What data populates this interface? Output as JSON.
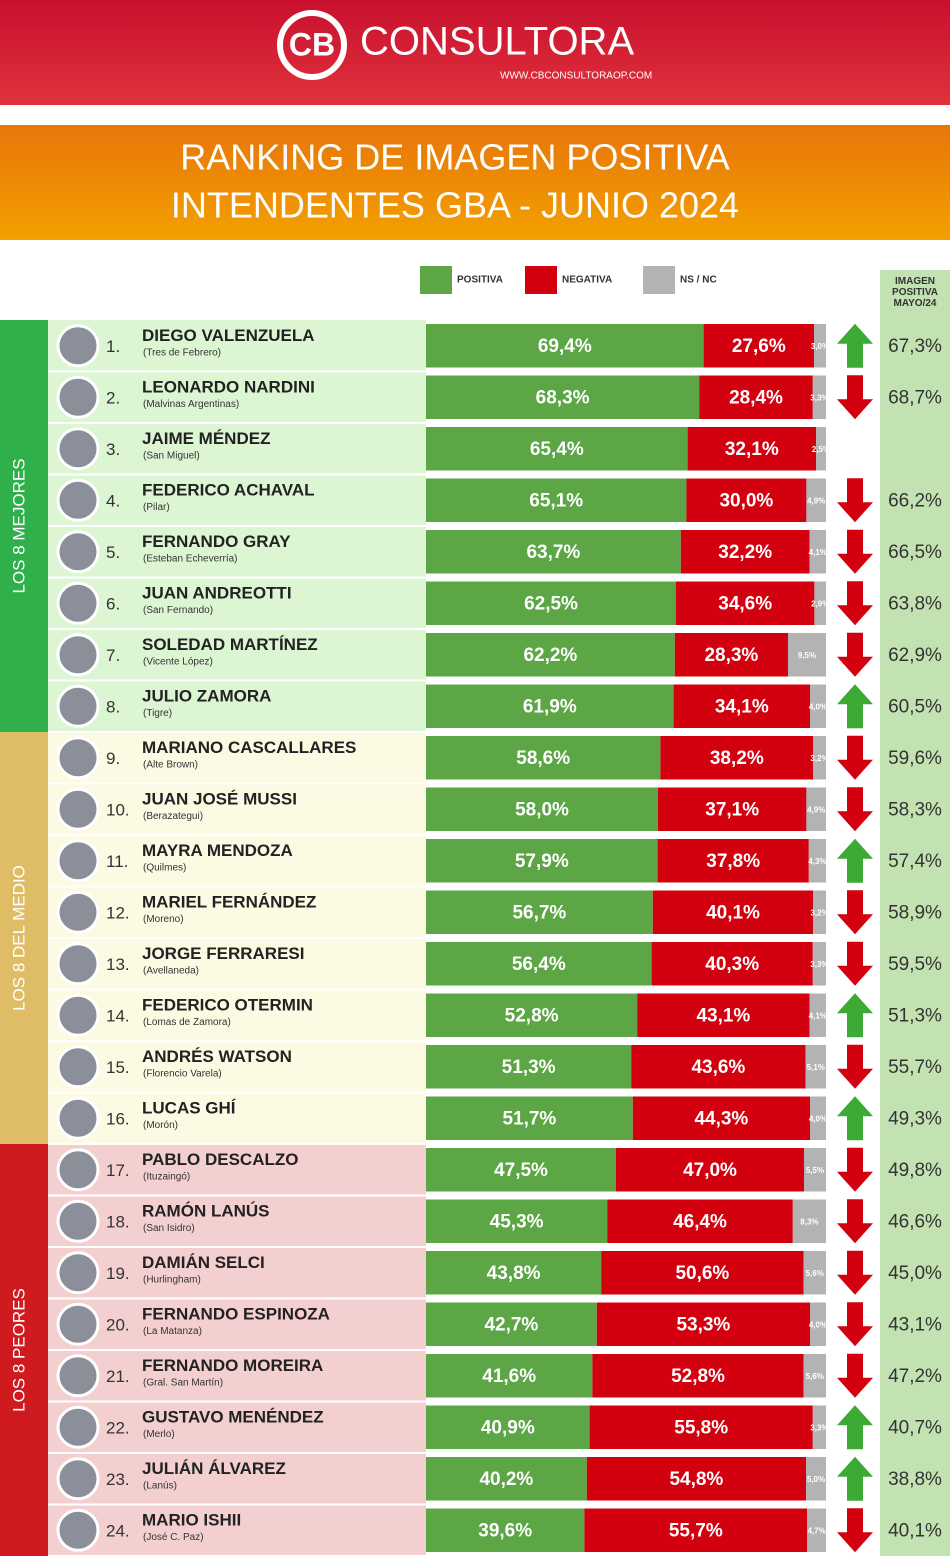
{
  "header": {
    "logo": "CB",
    "brand": "CONSULTORA",
    "url": "WWW.CBCONSULTORAOP.COM"
  },
  "chart_data": {
    "type": "stacked-bar",
    "title": "RANKING DE IMAGEN POSITIVA",
    "subtitle": "INTENDENTES GBA - JUNIO 2024",
    "xlim": [
      0,
      100
    ],
    "ranks": [
      "1.",
      "2.",
      "3.",
      "4.",
      "5.",
      "6.",
      "7.",
      "8.",
      "9.",
      "10.",
      "11.",
      "12.",
      "13.",
      "14.",
      "15.",
      "16.",
      "17.",
      "18.",
      "19.",
      "20.",
      "21.",
      "22.",
      "23.",
      "24."
    ],
    "categories": [
      "DIEGO VALENZUELA",
      "LEONARDO NARDINI",
      "JAIME MÉNDEZ",
      "FEDERICO ACHAVAL",
      "FERNANDO GRAY",
      "JUAN ANDREOTTI",
      "SOLEDAD MARTÍNEZ",
      "JULIO ZAMORA",
      "MARIANO CASCALLARES",
      "JUAN JOSÉ MUSSI",
      "MAYRA MENDOZA",
      "MARIEL FERNÁNDEZ",
      "JORGE FERRARESI",
      "FEDERICO OTERMIN",
      "ANDRÉS WATSON",
      "LUCAS GHÍ",
      "PABLO DESCALZO",
      "RAMÓN LANÚS",
      "DAMIÁN SELCI",
      "FERNANDO ESPINOZA",
      "FERNANDO MOREIRA",
      "GUSTAVO MENÉNDEZ",
      "JULIÁN ÁLVAREZ",
      "MARIO ISHII"
    ],
    "subcategories": [
      "(Tres de Febrero)",
      "(Malvinas Argentinas)",
      "(San Miguel)",
      "(Pilar)",
      "(Esteban Echeverría)",
      "(San Fernando)",
      "(Vicente López)",
      "(Tigre)",
      "(Alte Brown)",
      "(Berazategui)",
      "(Quilmes)",
      "(Moreno)",
      "(Avellaneda)",
      "(Lomas de Zamora)",
      "(Florencio Varela)",
      "(Morón)",
      "(Ituzaingó)",
      "(San Isidro)",
      "(Hurlingham)",
      "(La Matanza)",
      "(Gral. San Martín)",
      "(Merlo)",
      "(Lanús)",
      "(José C. Paz)"
    ],
    "groups": [
      {
        "label": "LOS 8 MEJORES",
        "color": "#2fb04a",
        "background": "#dcf5d3"
      },
      {
        "label": "LOS 8 DEL MEDIO",
        "color": "#dfbd67",
        "background": "#fcfae3"
      },
      {
        "label": "LOS 8 PEORES",
        "color": "#cf1a1f",
        "background": "#f4cfcf"
      }
    ],
    "series": [
      {
        "name": "POSITIVA",
        "color": "#5ca646",
        "values": [
          69.4,
          68.3,
          65.4,
          65.1,
          63.7,
          62.5,
          62.2,
          61.9,
          58.6,
          58.0,
          57.9,
          56.7,
          56.4,
          52.8,
          51.3,
          51.7,
          47.5,
          45.3,
          43.8,
          42.7,
          41.6,
          40.9,
          40.2,
          39.6
        ],
        "value_labels": [
          "69,4%",
          "68,3%",
          "65,4%",
          "65,1%",
          "63,7%",
          "62,5%",
          "62,2%",
          "61,9%",
          "58,6%",
          "58,0%",
          "57,9%",
          "56,7%",
          "56,4%",
          "52,8%",
          "51,3%",
          "51,7%",
          "47,5%",
          "45,3%",
          "43,8%",
          "42,7%",
          "41,6%",
          "40,9%",
          "40,2%",
          "39,6%"
        ]
      },
      {
        "name": "NEGATIVA",
        "color": "#d3000f",
        "values": [
          27.6,
          28.4,
          32.1,
          30.0,
          32.2,
          34.6,
          28.3,
          34.1,
          38.2,
          37.1,
          37.8,
          40.1,
          40.3,
          43.1,
          43.6,
          44.3,
          47.0,
          46.4,
          50.6,
          53.3,
          52.8,
          55.8,
          54.8,
          55.7
        ],
        "value_labels": [
          "27,6%",
          "28,4%",
          "32,1%",
          "30,0%",
          "32,2%",
          "34,6%",
          "28,3%",
          "34,1%",
          "38,2%",
          "37,1%",
          "37,8%",
          "40,1%",
          "40,3%",
          "43,1%",
          "43,6%",
          "44,3%",
          "47,0%",
          "46,4%",
          "50,6%",
          "53,3%",
          "52,8%",
          "55,8%",
          "54,8%",
          "55,7%"
        ]
      },
      {
        "name": "NS / NC",
        "color": "#b3b3b3",
        "values": [
          3.0,
          3.3,
          2.5,
          4.9,
          4.1,
          2.9,
          9.5,
          4.0,
          3.2,
          4.9,
          4.3,
          3.2,
          3.3,
          4.1,
          5.1,
          4.0,
          5.5,
          8.3,
          5.6,
          4.0,
          5.6,
          3.3,
          5.0,
          4.7
        ],
        "value_labels": [
          "3,0%",
          "3,3%",
          "2,5%",
          "4,9%",
          "4,1%",
          "2,9%",
          "9,5%",
          "4,0%",
          "3,2%",
          "4,9%",
          "4,3%",
          "3,2%",
          "3,3%",
          "4,1%",
          "5,1%",
          "4,0%",
          "5,5%",
          "8,3%",
          "5,6%",
          "4,0%",
          "5,6%",
          "3,3%",
          "5,0%",
          "4,7%"
        ]
      }
    ],
    "previous": {
      "label": "IMAGEN POSITIVA MAYO/24",
      "background": "#c3e2b2",
      "up_color": "#3caa34",
      "down_color": "#d3000f",
      "values": [
        67.3,
        68.7,
        null,
        66.2,
        66.5,
        63.8,
        62.9,
        60.5,
        59.6,
        58.3,
        57.4,
        58.9,
        59.5,
        51.3,
        55.7,
        49.3,
        49.8,
        46.6,
        45.0,
        43.1,
        47.2,
        40.7,
        38.8,
        40.1
      ],
      "value_labels": [
        "67,3%",
        "68,7%",
        null,
        "66,2%",
        "66,5%",
        "63,8%",
        "62,9%",
        "60,5%",
        "59,6%",
        "58,3%",
        "57,4%",
        "58,9%",
        "59,5%",
        "51,3%",
        "55,7%",
        "49,3%",
        "49,8%",
        "46,6%",
        "45,0%",
        "43,1%",
        "47,2%",
        "40,7%",
        "38,8%",
        "40,1%"
      ]
    }
  }
}
